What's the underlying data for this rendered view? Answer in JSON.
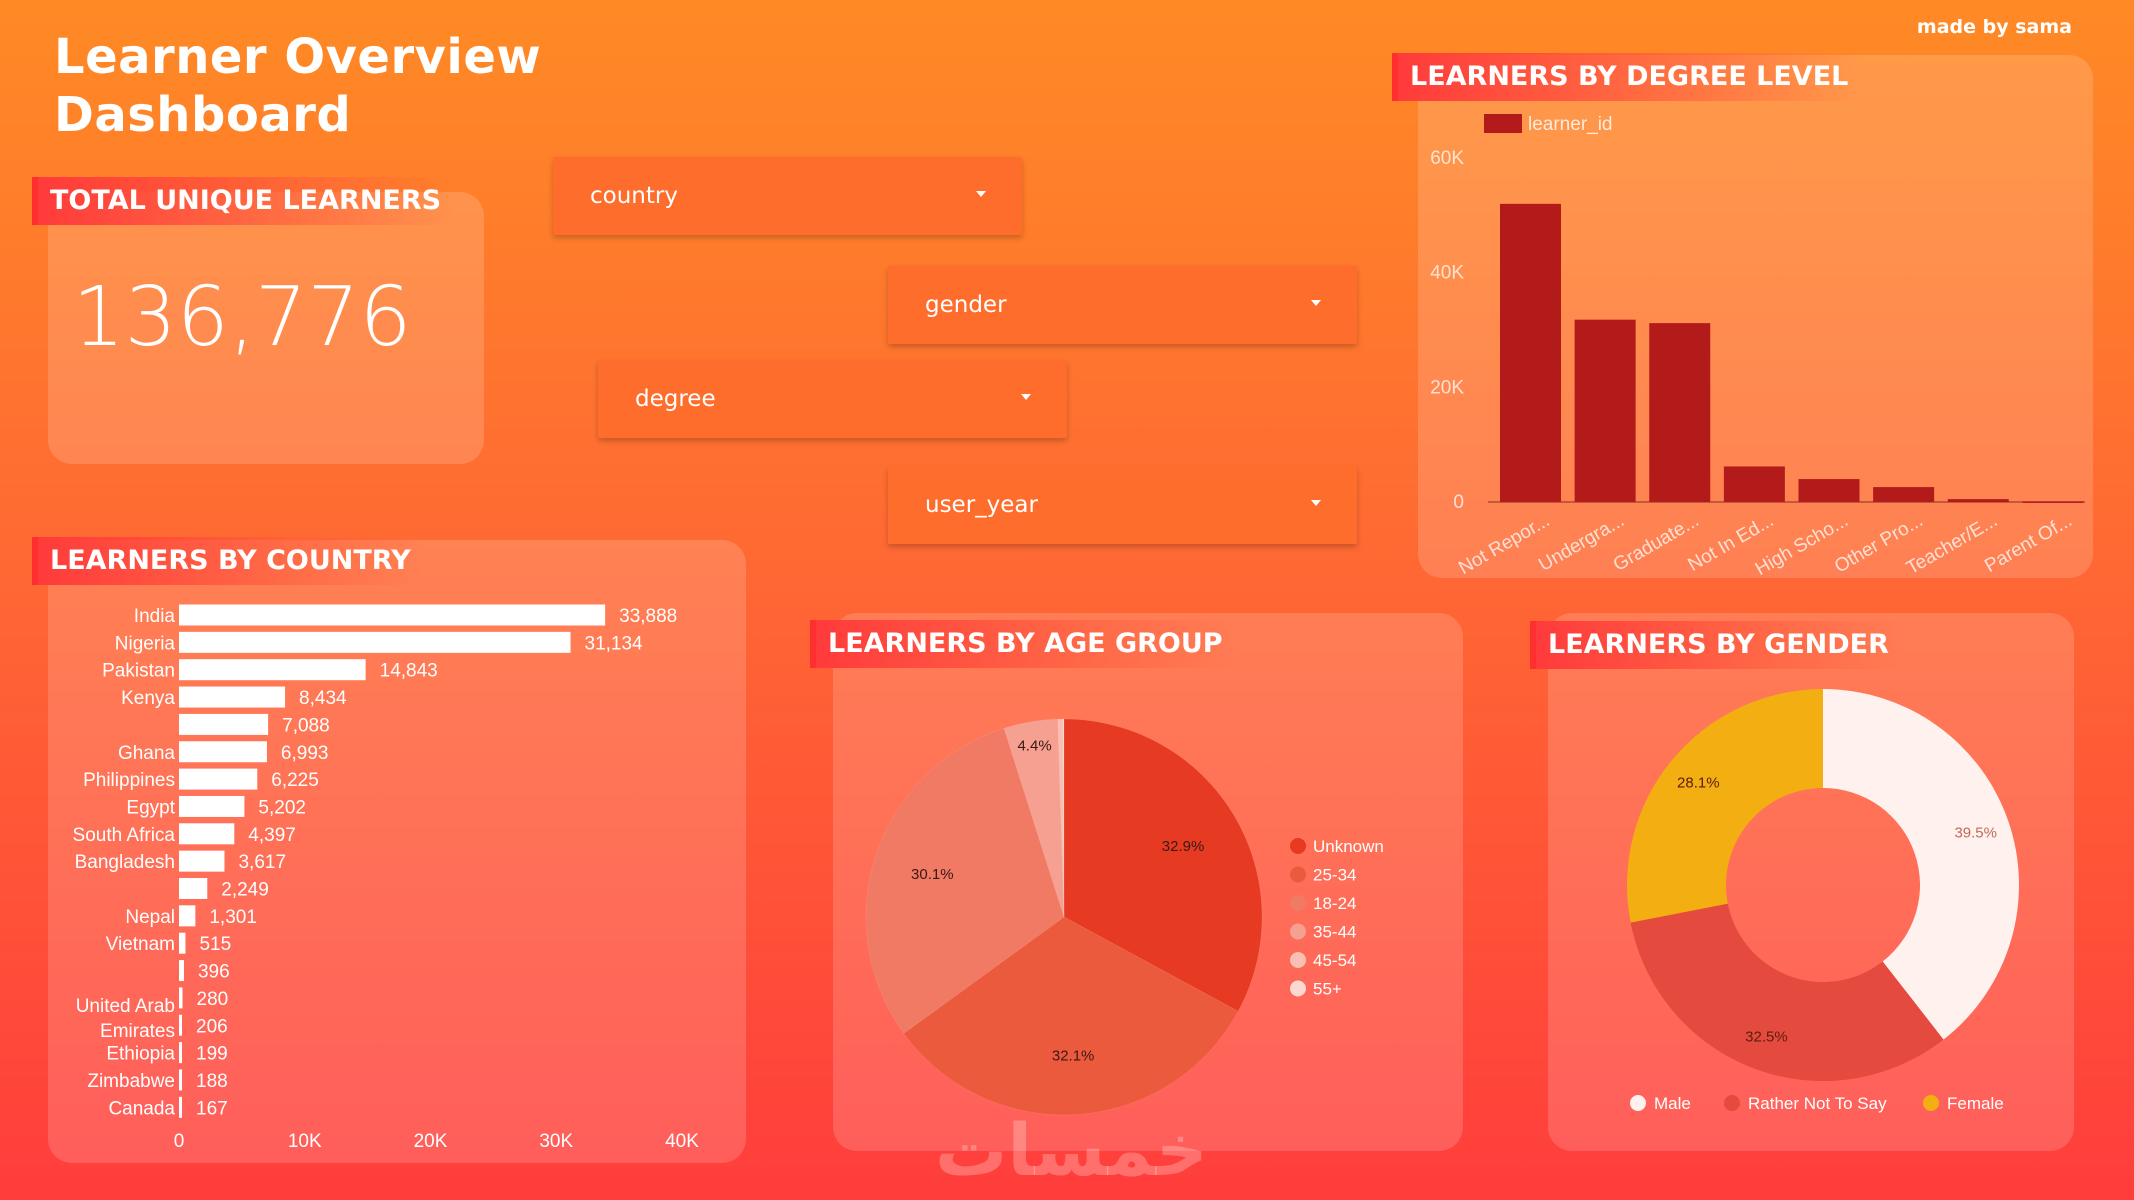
{
  "header": {
    "title_line1": "Learner Overview",
    "title_line2": "Dashboard",
    "credit": "made by sama"
  },
  "kpi": {
    "label": "TOTAL UNIQUE LEARNERS",
    "value": "136,776"
  },
  "filters": [
    {
      "label": "country"
    },
    {
      "label": "gender"
    },
    {
      "label": "degree"
    },
    {
      "label": "user_year"
    }
  ],
  "watermark": "خمسات",
  "chart_data": [
    {
      "id": "degree",
      "type": "bar",
      "title": "LEARNERS BY DEGREE LEVEL",
      "legend": "learner_id",
      "categories": [
        "Not Repor...",
        "Undergra...",
        "Graduate...",
        "Not In Ed...",
        "High Scho...",
        "Other Pro...",
        "Teacher/E...",
        "Parent Of..."
      ],
      "values": [
        52000,
        31800,
        31200,
        6200,
        4000,
        2600,
        500,
        100
      ],
      "yticks": [
        "0",
        "20K",
        "40K",
        "60K"
      ],
      "ylim": [
        0,
        60000
      ],
      "color": "#b31b1b"
    },
    {
      "id": "country",
      "type": "bar",
      "orientation": "horizontal",
      "title": "LEARNERS BY COUNTRY",
      "categories": [
        "India",
        "Nigeria",
        "Pakistan",
        "Kenya",
        "",
        "Ghana",
        "Philippines",
        "Egypt",
        "South Africa",
        "Bangladesh",
        "",
        "Nepal",
        "Vietnam",
        "",
        "United Arab Emirates",
        "",
        "Ethiopia",
        "Zimbabwe",
        "Canada"
      ],
      "values": [
        33888,
        31134,
        14843,
        8434,
        7088,
        6993,
        6225,
        5202,
        4397,
        3617,
        2249,
        1301,
        515,
        396,
        280,
        206,
        199,
        188,
        167
      ],
      "value_labels": [
        "33,888",
        "31,134",
        "14,843",
        "8,434",
        "7,088",
        "6,993",
        "6,225",
        "5,202",
        "4,397",
        "3,617",
        "2,249",
        "1,301",
        "515",
        "396",
        "280",
        "206",
        "199",
        "188",
        "167"
      ],
      "xticks": [
        "0",
        "10K",
        "20K",
        "30K",
        "40K"
      ],
      "xlim": [
        0,
        40000
      ],
      "color": "#ffffff"
    },
    {
      "id": "age",
      "type": "pie",
      "title": "LEARNERS BY AGE GROUP",
      "labels": [
        "Unknown",
        "25-34",
        "18-24",
        "35-44",
        "45-54",
        "55+"
      ],
      "values": [
        32.9,
        32.1,
        30.1,
        4.4,
        0.4,
        0.1
      ],
      "value_labels": [
        "32.9%",
        "32.1%",
        "30.1%",
        "4.4%",
        "",
        ""
      ],
      "colors": [
        "#e63a22",
        "#ec5a3e",
        "#f07a64",
        "#f5a090",
        "#f8bfb2",
        "#fbd8d0"
      ]
    },
    {
      "id": "gender",
      "type": "pie",
      "donut": true,
      "title": "LEARNERS BY GENDER",
      "labels": [
        "Male",
        "Rather Not To Say",
        "Female"
      ],
      "values": [
        39.5,
        32.5,
        28.1
      ],
      "value_labels": [
        "39.5%",
        "32.5%",
        "28.1%"
      ],
      "colors": [
        "#fff1ee",
        "#e44a3d",
        "#f3ae12"
      ]
    }
  ]
}
